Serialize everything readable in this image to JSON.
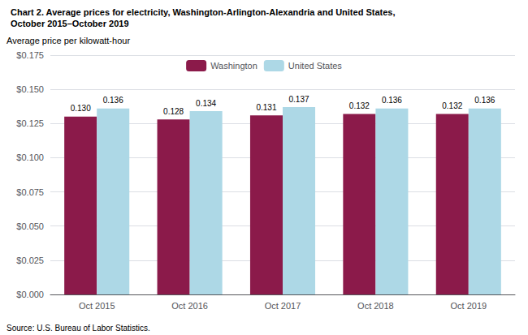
{
  "chart_data": {
    "type": "bar",
    "title": "Chart 2. Average prices for electricity, Washington-Arlington-Alexandria and United States,",
    "subtitle": "October 2015–October 2019",
    "ylabel": "Average price per kilowatt-hour",
    "annotations": [
      "Source: U.S. Bureau of Labor Statistics."
    ],
    "categories": [
      "Oct 2015",
      "Oct 2016",
      "Oct 2017",
      "Oct 2018",
      "Oct 2019"
    ],
    "series": [
      {
        "name": "Washington",
        "color": "#8B1A4A",
        "values": [
          0.13,
          0.128,
          0.131,
          0.132,
          0.132
        ],
        "value_labels": [
          "0.130",
          "0.128",
          "0.131",
          "0.132",
          "0.132"
        ]
      },
      {
        "name": "United States",
        "color": "#ADD8E6",
        "values": [
          0.136,
          0.134,
          0.137,
          0.136,
          0.136
        ],
        "value_labels": [
          "0.136",
          "0.134",
          "0.137",
          "0.136",
          "0.136"
        ]
      }
    ],
    "ylim": [
      0.0,
      0.175
    ],
    "yticks": [
      {
        "value": 0.0,
        "label": "$0.000"
      },
      {
        "value": 0.025,
        "label": "$0.025"
      },
      {
        "value": 0.05,
        "label": "$0.050"
      },
      {
        "value": 0.075,
        "label": "$0.075"
      },
      {
        "value": 0.1,
        "label": "$0.100"
      },
      {
        "value": 0.125,
        "label": "$0.125"
      },
      {
        "value": 0.15,
        "label": "$0.150"
      },
      {
        "value": 0.175,
        "label": "$0.175"
      }
    ],
    "grid": true,
    "legend": "top",
    "data_labels": true
  }
}
